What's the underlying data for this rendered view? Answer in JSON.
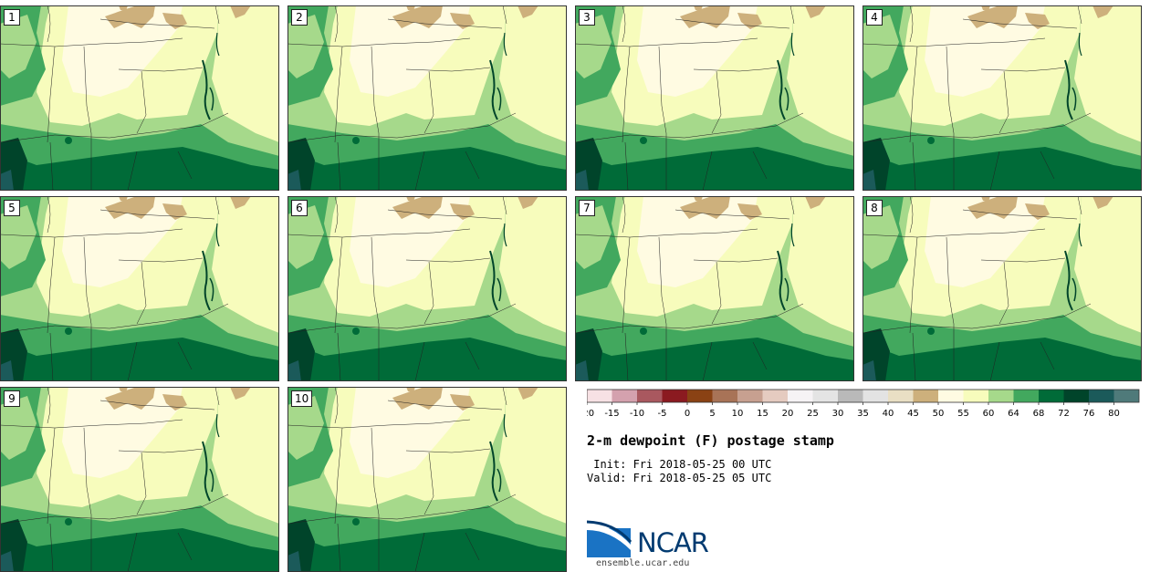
{
  "panels": [
    {
      "label": "1"
    },
    {
      "label": "2"
    },
    {
      "label": "3"
    },
    {
      "label": "4"
    },
    {
      "label": "5"
    },
    {
      "label": "6"
    },
    {
      "label": "7"
    },
    {
      "label": "8"
    },
    {
      "label": "9"
    },
    {
      "label": "10"
    }
  ],
  "colorbar": {
    "ticks": [
      "-20",
      "-15",
      "-10",
      "-5",
      "0",
      "5",
      "10",
      "15",
      "20",
      "25",
      "30",
      "35",
      "40",
      "45",
      "50",
      "55",
      "60",
      "64",
      "68",
      "72",
      "76",
      "80"
    ],
    "colors": [
      "#f7e1e4",
      "#d4a1ae",
      "#a9585f",
      "#8b1a20",
      "#8a4214",
      "#a87357",
      "#c7a090",
      "#e5cbc0",
      "#f6f3f5",
      "#e4e4e4",
      "#b9b9b9",
      "#e3e3e3",
      "#e9dfc4",
      "#cdb07c",
      "#fffbe2",
      "#f7fcbc",
      "#a6d98b",
      "#42a85e",
      "#006b38",
      "#00442a",
      "#1b5a5a",
      "#4f7a7a"
    ]
  },
  "title": "2-m dewpoint (F) postage stamp",
  "init_text": " Init: Fri 2018-05-25 00 UTC",
  "valid_text": "Valid: Fri 2018-05-25 05 UTC",
  "logo": {
    "name": "NCAR",
    "url": "ensemble.ucar.edu"
  }
}
